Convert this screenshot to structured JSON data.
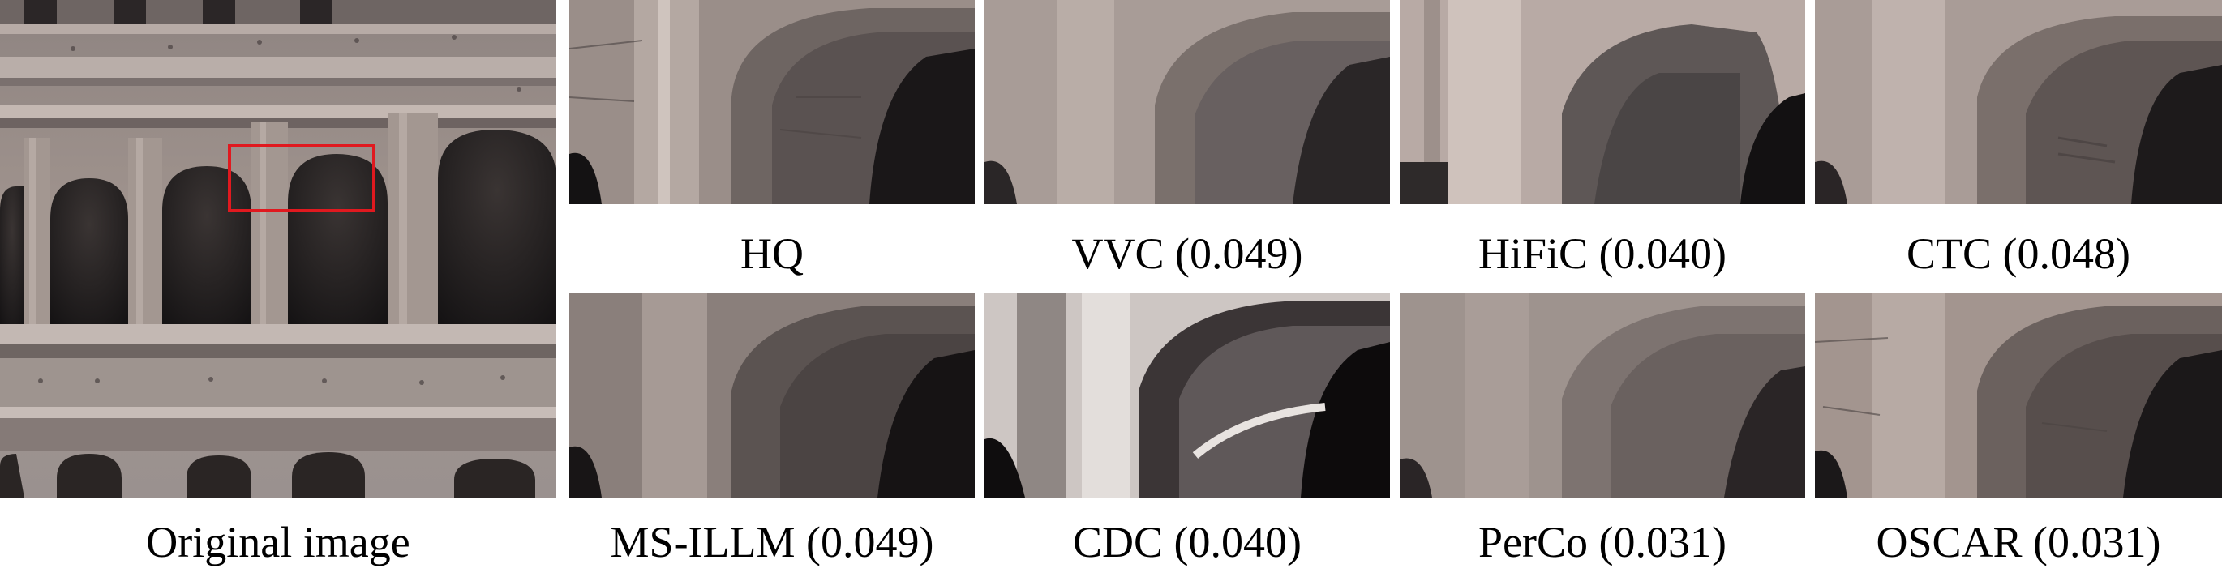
{
  "figure": {
    "original_caption": "Original image",
    "panels": [
      {
        "caption": "HQ"
      },
      {
        "caption": "VVC (0.049)"
      },
      {
        "caption": "HiFiC (0.040)"
      },
      {
        "caption": "CTC (0.048)"
      },
      {
        "caption": "MS-ILLM (0.049)"
      },
      {
        "caption": "CDC (0.040)"
      },
      {
        "caption": "PerCo (0.031)"
      },
      {
        "caption": "OSCAR (0.031)"
      }
    ],
    "colors": {
      "stone_light": "#b8aca6",
      "stone_mid": "#8c807c",
      "stone_dark": "#5e5552",
      "shadow": "#1e1b1c",
      "highlight_box": "#e0191f"
    }
  }
}
